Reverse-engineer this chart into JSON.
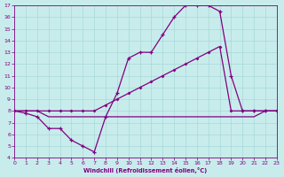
{
  "xlabel": "Windchill (Refroidissement éolien,°C)",
  "background_color": "#c8ecec",
  "grid_color": "#a8d8d8",
  "line_color": "#800080",
  "xmin": 0,
  "xmax": 23,
  "ymin": 4,
  "ymax": 17,
  "yticks": [
    4,
    5,
    6,
    7,
    8,
    9,
    10,
    11,
    12,
    13,
    14,
    15,
    16,
    17
  ],
  "xticks": [
    0,
    1,
    2,
    3,
    4,
    5,
    6,
    7,
    8,
    9,
    10,
    11,
    12,
    13,
    14,
    15,
    16,
    17,
    18,
    19,
    20,
    21,
    22,
    23
  ],
  "line1_x": [
    0,
    1,
    2,
    3,
    4,
    5,
    6,
    7,
    8,
    9,
    10,
    11,
    12,
    13,
    14,
    15,
    16,
    17,
    18,
    19,
    20,
    21,
    22,
    23
  ],
  "line1_y": [
    8,
    7.8,
    7.5,
    6.5,
    6.5,
    5.5,
    5,
    4.5,
    7.5,
    9.5,
    12.5,
    13,
    13,
    14.5,
    16,
    17,
    17,
    17,
    16.5,
    11,
    8,
    8,
    8,
    8
  ],
  "line2_x": [
    0,
    1,
    2,
    3,
    4,
    5,
    6,
    7,
    8,
    9,
    10,
    11,
    12,
    13,
    14,
    15,
    16,
    17,
    18,
    19,
    20,
    21,
    22,
    23
  ],
  "line2_y": [
    8,
    8,
    8,
    8,
    8,
    8,
    8,
    8,
    8.5,
    9,
    9.5,
    10,
    10.5,
    11,
    11.5,
    12,
    12.5,
    13,
    13.5,
    8,
    8,
    8,
    8,
    8
  ],
  "line3_x": [
    0,
    1,
    2,
    3,
    4,
    5,
    6,
    7,
    8,
    9,
    10,
    11,
    12,
    13,
    14,
    15,
    16,
    17,
    18,
    19,
    20,
    21,
    22,
    23
  ],
  "line3_y": [
    8,
    8,
    8,
    7.5,
    7.5,
    7.5,
    7.5,
    7.5,
    7.5,
    7.5,
    7.5,
    7.5,
    7.5,
    7.5,
    7.5,
    7.5,
    7.5,
    7.5,
    7.5,
    7.5,
    7.5,
    7.5,
    8,
    8
  ]
}
